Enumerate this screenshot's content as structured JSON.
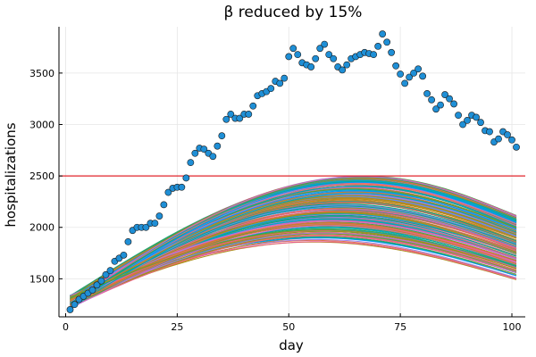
{
  "chart_data": {
    "type": "line",
    "title": "β reduced by 15%",
    "xlabel": "day",
    "ylabel": "hospitalizations",
    "xlim": [
      -1.5,
      103
    ],
    "ylim": [
      1130,
      3950
    ],
    "xticks": [
      0,
      25,
      50,
      75,
      100
    ],
    "yticks": [
      1500,
      2000,
      2500,
      3000,
      3500
    ],
    "grid": true,
    "legend": "none",
    "reference_line": {
      "y": 2500,
      "color": "#e0242b"
    },
    "observed": {
      "color": "#1f8fd6",
      "x": [
        1,
        2,
        3,
        4,
        5,
        6,
        7,
        8,
        9,
        10,
        11,
        12,
        13,
        14,
        15,
        16,
        17,
        18,
        19,
        20,
        21,
        22,
        23,
        24,
        25,
        26,
        27,
        28,
        29,
        30,
        31,
        32,
        33,
        34,
        35,
        36,
        37,
        38,
        39,
        40,
        41,
        42,
        43,
        44,
        45,
        46,
        47,
        48,
        49,
        50,
        51,
        52,
        53,
        54,
        55,
        56,
        57,
        58,
        59,
        60,
        61,
        62,
        63,
        64,
        65,
        66,
        67,
        68,
        69,
        70,
        71,
        72,
        73,
        74,
        75,
        76,
        77,
        78,
        79,
        80,
        81,
        82,
        83,
        84,
        85,
        86,
        87,
        88,
        89,
        90,
        91,
        92,
        93,
        94,
        95,
        96,
        97,
        98,
        99,
        100,
        101
      ],
      "y": [
        1200,
        1250,
        1300,
        1330,
        1360,
        1390,
        1440,
        1480,
        1540,
        1580,
        1670,
        1700,
        1730,
        1860,
        1970,
        2000,
        2000,
        2000,
        2040,
        2040,
        2110,
        2220,
        2340,
        2380,
        2390,
        2390,
        2480,
        2630,
        2720,
        2770,
        2760,
        2720,
        2690,
        2790,
        2890,
        3050,
        3100,
        3060,
        3060,
        3100,
        3100,
        3180,
        3280,
        3300,
        3320,
        3350,
        3420,
        3400,
        3450,
        3660,
        3740,
        3680,
        3600,
        3580,
        3560,
        3640,
        3740,
        3780,
        3680,
        3640,
        3560,
        3530,
        3580,
        3640,
        3660,
        3680,
        3700,
        3690,
        3680,
        3760,
        3880,
        3800,
        3700,
        3570,
        3490,
        3400,
        3460,
        3500,
        3540,
        3470,
        3300,
        3240,
        3150,
        3190,
        3290,
        3250,
        3200,
        3090,
        3000,
        3040,
        3090,
        3070,
        3020,
        2940,
        2930,
        2830,
        2860,
        2930,
        2900,
        2850,
        2780
      ]
    },
    "ensemble": {
      "count": 220,
      "x_start": 1,
      "x_end": 101,
      "start_range": [
        1210,
        1340
      ],
      "peak_range": [
        1850,
        2500
      ],
      "peak_day_range": [
        56,
        67
      ],
      "end_range": [
        1480,
        2110
      ],
      "colors": [
        "#009af9",
        "#e26f46",
        "#3da44d",
        "#c271d2",
        "#ac8e18",
        "#00a9ad",
        "#ed5e93",
        "#c68225",
        "#00a98d",
        "#8e971d",
        "#00a9cd",
        "#9b7fe9",
        "#618df6",
        "#f16c6c"
      ]
    }
  }
}
